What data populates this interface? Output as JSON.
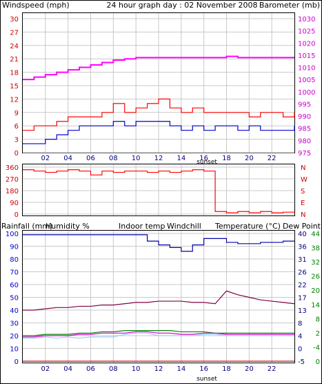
{
  "header": {
    "left_label": "Windspeed (mph)",
    "center_title": "24 hour graph day : 02 November 2008",
    "right_label": "Barometer (mb)"
  },
  "bottom_header": {
    "rainfall": "Rainfall (mm)",
    "humidity": "Humidity %",
    "indoor": "Indoor temp",
    "windchill": "Windchill",
    "temperature": "Temperature (°C)",
    "dewpoint": "Dew Point"
  },
  "sunset_label": "sunset",
  "colors": {
    "wind_gust": "#ff0000",
    "wind_avg": "#0000cc",
    "barometer": "#ff00ff",
    "direction": "#ff0000",
    "humidity": "#0000aa",
    "indoor": "#800040",
    "windchill": "#99ccff",
    "temperature": "#008000",
    "dewpoint": "#cc00cc",
    "rainfall": "#cc0000"
  },
  "chart_data": [
    {
      "type": "line",
      "name": "wind-barometer",
      "x_ticks": [
        "02",
        "04",
        "06",
        "08",
        "10",
        "12",
        "14",
        "16",
        "18",
        "20",
        "22"
      ],
      "y_left_ticks": [
        "0",
        "3",
        "6",
        "9",
        "12",
        "15",
        "18",
        "21",
        "24",
        "27",
        "30"
      ],
      "y_right_ticks": [
        "975",
        "980",
        "985",
        "990",
        "995",
        "1000",
        "1005",
        "1010",
        "1015",
        "1020",
        "1025",
        "1030"
      ],
      "ylim_left": [
        0,
        30
      ],
      "ylim_right": [
        975,
        1030
      ],
      "xlim": [
        0,
        24
      ],
      "series": [
        {
          "name": "Barometer (mb)",
          "axis": "right",
          "x": [
            0,
            1,
            2,
            3,
            4,
            5,
            6,
            7,
            8,
            9,
            10,
            11,
            12,
            13,
            14,
            15,
            16,
            17,
            18,
            19,
            20,
            21,
            22,
            23,
            24
          ],
          "y": [
            1005,
            1006,
            1007,
            1008,
            1009,
            1010,
            1011,
            1012,
            1013,
            1013.5,
            1014,
            1014,
            1014,
            1014,
            1014,
            1014,
            1014,
            1014,
            1014.5,
            1014,
            1014,
            1014,
            1014,
            1014,
            1014
          ]
        },
        {
          "name": "Wind gust",
          "axis": "left",
          "x": [
            0,
            1,
            2,
            3,
            4,
            5,
            6,
            7,
            8,
            9,
            10,
            11,
            12,
            13,
            14,
            15,
            16,
            17,
            18,
            19,
            20,
            21,
            22,
            23,
            24
          ],
          "y": [
            5,
            6,
            6,
            7,
            8,
            8,
            8,
            9,
            11,
            9,
            10,
            11,
            12,
            10,
            9,
            10,
            9,
            9,
            9,
            9,
            8,
            9,
            9,
            8,
            9
          ]
        },
        {
          "name": "Wind average",
          "axis": "left",
          "x": [
            0,
            1,
            2,
            3,
            4,
            5,
            6,
            7,
            8,
            9,
            10,
            11,
            12,
            13,
            14,
            15,
            16,
            17,
            18,
            19,
            20,
            21,
            22,
            23,
            24
          ],
          "y": [
            2,
            2,
            3,
            4,
            5,
            6,
            6,
            6,
            7,
            6,
            7,
            7,
            7,
            6,
            5,
            6,
            5,
            6,
            6,
            5,
            6,
            5,
            5,
            5,
            6
          ]
        }
      ]
    },
    {
      "type": "line",
      "name": "wind-direction",
      "x_ticks": [],
      "y_left_ticks": [
        "0",
        "90",
        "180",
        "270",
        "360"
      ],
      "y_right_ticks": [
        "N",
        "E",
        "S",
        "W",
        "N"
      ],
      "ylim": [
        0,
        360
      ],
      "xlim": [
        0,
        24
      ],
      "series": [
        {
          "name": "Wind direction",
          "x": [
            0,
            1,
            2,
            3,
            4,
            5,
            6,
            7,
            8,
            9,
            10,
            11,
            12,
            13,
            14,
            15,
            16,
            17,
            18,
            19,
            20,
            21,
            22,
            23,
            24
          ],
          "y": [
            340,
            330,
            320,
            330,
            340,
            330,
            300,
            330,
            320,
            330,
            330,
            320,
            330,
            320,
            330,
            340,
            330,
            20,
            10,
            20,
            10,
            20,
            10,
            15,
            20
          ]
        }
      ]
    },
    {
      "type": "line",
      "name": "rain-humidity-temperature",
      "x_ticks": [
        "02",
        "04",
        "06",
        "08",
        "10",
        "12",
        "14",
        "16",
        "18",
        "20",
        "22"
      ],
      "y_left_ticks": [
        "0",
        "10",
        "20",
        "30",
        "40",
        "50",
        "60",
        "70",
        "80",
        "90",
        "100"
      ],
      "y_right_inner_ticks": [
        "-5",
        "0",
        "4",
        "8",
        "13",
        "17",
        "22",
        "26",
        "31",
        "36",
        "40"
      ],
      "y_right_outer_ticks": [
        "0",
        "-4",
        "2",
        "8",
        "14",
        "20",
        "26",
        "32",
        "38",
        "44"
      ],
      "ylim_left": [
        0,
        100
      ],
      "xlim": [
        0,
        24
      ],
      "series": [
        {
          "name": "Humidity %",
          "x": [
            0,
            1,
            2,
            3,
            4,
            5,
            6,
            7,
            8,
            9,
            10,
            11,
            12,
            13,
            14,
            15,
            16,
            17,
            18,
            19,
            20,
            21,
            22,
            23,
            24
          ],
          "y": [
            99,
            99,
            99,
            99,
            99,
            99,
            99,
            99,
            99,
            99,
            99,
            94,
            91,
            89,
            86,
            91,
            96,
            96,
            93,
            92,
            92,
            93,
            93,
            94,
            94
          ]
        },
        {
          "name": "Indoor temp",
          "x": [
            0,
            1,
            2,
            3,
            4,
            5,
            6,
            7,
            8,
            9,
            10,
            11,
            12,
            13,
            14,
            15,
            16,
            17,
            18,
            19,
            20,
            21,
            22,
            23,
            24
          ],
          "y": [
            40,
            40,
            41,
            42,
            42,
            43,
            43,
            44,
            44,
            45,
            46,
            46,
            47,
            47,
            47,
            46,
            46,
            45,
            55,
            52,
            50,
            48,
            47,
            46,
            45
          ]
        },
        {
          "name": "Temperature (°C)",
          "x": [
            0,
            1,
            2,
            3,
            4,
            5,
            6,
            7,
            8,
            9,
            10,
            11,
            12,
            13,
            14,
            15,
            16,
            17,
            18,
            19,
            20,
            21,
            22,
            23,
            24
          ],
          "y": [
            20,
            20,
            21,
            21,
            21,
            22,
            22,
            23,
            23,
            24,
            24,
            24,
            24,
            24,
            23,
            23,
            23,
            22,
            22,
            22,
            22,
            22,
            22,
            22,
            22
          ]
        },
        {
          "name": "Dew Point",
          "x": [
            0,
            1,
            2,
            3,
            4,
            5,
            6,
            7,
            8,
            9,
            10,
            11,
            12,
            13,
            14,
            15,
            16,
            17,
            18,
            19,
            20,
            21,
            22,
            23,
            24
          ],
          "y": [
            19,
            19,
            20,
            20,
            20,
            21,
            21,
            22,
            22,
            22,
            23,
            23,
            22,
            22,
            21,
            21,
            22,
            22,
            21,
            21,
            21,
            21,
            21,
            21,
            21
          ]
        },
        {
          "name": "Windchill",
          "x": [
            0,
            1,
            2,
            3,
            4,
            5,
            6,
            7,
            8,
            9,
            10,
            11,
            12,
            13,
            14,
            15,
            16,
            17,
            18,
            19,
            20,
            21,
            22,
            23,
            24
          ],
          "y": [
            18,
            18,
            19,
            18,
            19,
            18,
            19,
            19,
            19,
            21,
            22,
            22,
            20,
            20,
            20,
            20,
            21,
            21,
            20,
            20,
            20,
            20,
            20,
            20,
            20
          ]
        },
        {
          "name": "Rainfall (mm)",
          "x": [
            0,
            24
          ],
          "y": [
            0,
            0
          ]
        }
      ]
    }
  ]
}
